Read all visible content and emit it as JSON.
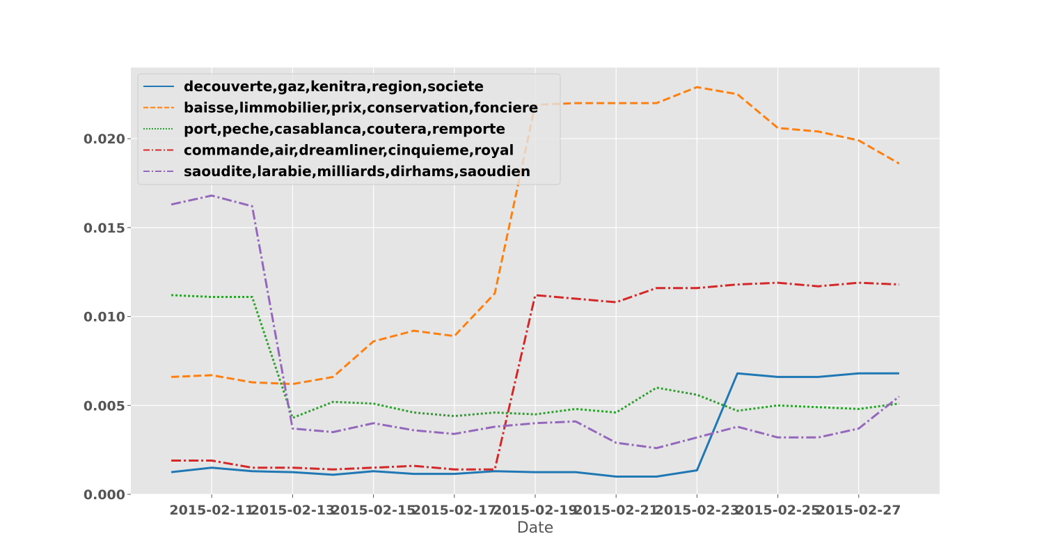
{
  "chart_data": {
    "type": "line",
    "xlabel": "Date",
    "ylabel": "",
    "x": [
      "2015-02-10",
      "2015-02-11",
      "2015-02-12",
      "2015-02-13",
      "2015-02-14",
      "2015-02-15",
      "2015-02-16",
      "2015-02-17",
      "2015-02-18",
      "2015-02-19",
      "2015-02-20",
      "2015-02-21",
      "2015-02-22",
      "2015-02-23",
      "2015-02-24",
      "2015-02-25",
      "2015-02-26",
      "2015-02-27",
      "2015-02-28"
    ],
    "xticks": [
      "2015-02-11",
      "2015-02-13",
      "2015-02-15",
      "2015-02-17",
      "2015-02-19",
      "2015-02-21",
      "2015-02-23",
      "2015-02-25",
      "2015-02-27"
    ],
    "xlim": [
      "2015-02-09",
      "2015-02-29"
    ],
    "ylim": [
      0,
      0.024
    ],
    "yticks": [
      "0.000",
      "0.005",
      "0.010",
      "0.015",
      "0.020"
    ],
    "grid": true,
    "legend_position": "top-left",
    "series": [
      {
        "name": "decouverte,gaz,kenitra,region,societe",
        "color": "#1f77b4",
        "dash": "solid",
        "values": [
          0.00125,
          0.0015,
          0.0013,
          0.00125,
          0.0011,
          0.0013,
          0.00115,
          0.00115,
          0.0013,
          0.00125,
          0.00125,
          0.001,
          0.001,
          0.00135,
          0.0068,
          0.0066,
          0.0066,
          0.0068,
          0.0068
        ]
      },
      {
        "name": "baisse,limmobilier,prix,conservation,fonciere",
        "color": "#ff7f0e",
        "dash": "dashed",
        "values": [
          0.0066,
          0.0067,
          0.0063,
          0.0062,
          0.0066,
          0.0086,
          0.0092,
          0.0089,
          0.0113,
          0.0219,
          0.022,
          0.022,
          0.022,
          0.0229,
          0.0225,
          0.0206,
          0.0204,
          0.0199,
          0.0186
        ]
      },
      {
        "name": "port,peche,casablanca,coutera,remporte",
        "color": "#2ca02c",
        "dash": "dotted",
        "values": [
          0.0112,
          0.0111,
          0.0111,
          0.0043,
          0.0052,
          0.0051,
          0.0046,
          0.0044,
          0.0046,
          0.0045,
          0.0048,
          0.0046,
          0.006,
          0.0056,
          0.0047,
          0.005,
          0.0049,
          0.0048,
          0.0051
        ]
      },
      {
        "name": "commande,air,dreamliner,cinquieme,royal",
        "color": "#d62728",
        "dash": "dashdot",
        "values": [
          0.0019,
          0.0019,
          0.0015,
          0.0015,
          0.0014,
          0.0015,
          0.0016,
          0.0014,
          0.0014,
          0.0112,
          0.011,
          0.0108,
          0.0116,
          0.0116,
          0.0118,
          0.0119,
          0.0117,
          0.0119,
          0.0118
        ]
      },
      {
        "name": "saoudite,larabie,milliards,dirhams,saoudien",
        "color": "#9467bd",
        "dash": "dashdot",
        "values": [
          0.0163,
          0.0168,
          0.0162,
          0.0037,
          0.0035,
          0.004,
          0.0036,
          0.0034,
          0.0038,
          0.004,
          0.0041,
          0.0029,
          0.0026,
          0.0032,
          0.0038,
          0.0032,
          0.0032,
          0.0037,
          0.0055
        ]
      }
    ]
  }
}
